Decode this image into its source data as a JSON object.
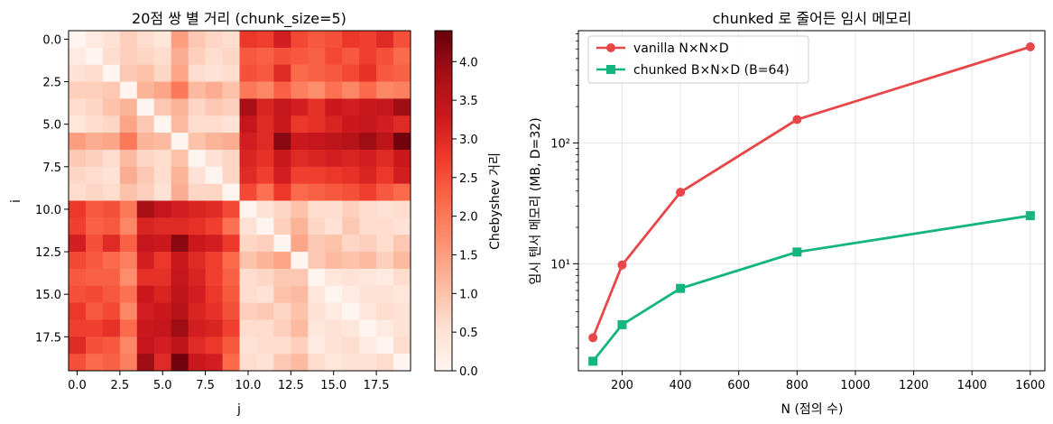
{
  "chart_data": [
    {
      "type": "heatmap",
      "title": "20점 쌍 별 거리 (chunk_size=5)",
      "xlabel": "j",
      "ylabel": "i",
      "rows": 20,
      "cols": 20,
      "x_ticks": [
        "0.0",
        "2.5",
        "5.0",
        "7.5",
        "10.0",
        "12.5",
        "15.0",
        "17.5"
      ],
      "y_ticks": [
        "0.0",
        "2.5",
        "5.0",
        "7.5",
        "10.0",
        "12.5",
        "15.0",
        "17.5"
      ],
      "colorbar": {
        "label": "Chebyshev 거리",
        "range": [
          0,
          4.4
        ],
        "ticks": [
          "0.0",
          "0.5",
          "1.0",
          "1.5",
          "2.0",
          "2.5",
          "3.0",
          "3.5",
          "4.0"
        ],
        "colormap": "Reds"
      },
      "values": [
        [
          0.0,
          0.3,
          0.5,
          0.8,
          0.6,
          0.4,
          1.5,
          0.9,
          0.7,
          0.6,
          2.8,
          2.7,
          3.2,
          2.6,
          2.4,
          2.5,
          2.8,
          2.7,
          3.0,
          2.5
        ],
        [
          0.3,
          0.0,
          0.6,
          0.8,
          0.7,
          0.6,
          1.3,
          0.8,
          0.6,
          0.7,
          2.4,
          2.3,
          2.5,
          2.4,
          2.3,
          2.6,
          2.4,
          2.7,
          2.5,
          2.2
        ],
        [
          0.5,
          0.6,
          0.0,
          0.9,
          1.0,
          0.7,
          1.4,
          0.6,
          0.5,
          0.6,
          2.5,
          2.4,
          3.0,
          2.2,
          2.3,
          2.4,
          2.6,
          2.9,
          2.4,
          2.3
        ],
        [
          0.8,
          0.8,
          0.9,
          0.0,
          1.2,
          1.4,
          2.0,
          1.1,
          1.3,
          1.0,
          2.0,
          1.8,
          2.3,
          1.9,
          1.7,
          2.1,
          1.8,
          2.2,
          1.8,
          1.9
        ],
        [
          0.6,
          0.7,
          1.0,
          1.2,
          0.0,
          0.9,
          1.2,
          0.7,
          0.9,
          0.8,
          3.8,
          3.1,
          3.4,
          3.2,
          2.9,
          3.3,
          3.2,
          3.3,
          3.4,
          3.9
        ],
        [
          0.4,
          0.6,
          0.7,
          1.4,
          0.9,
          0.0,
          1.1,
          0.6,
          0.6,
          0.5,
          3.4,
          3.0,
          3.3,
          2.8,
          2.9,
          3.1,
          3.3,
          3.4,
          3.2,
          3.0
        ],
        [
          1.5,
          1.3,
          1.4,
          2.0,
          1.2,
          1.1,
          0.0,
          1.0,
          1.2,
          1.3,
          3.2,
          3.0,
          4.1,
          3.3,
          3.4,
          3.5,
          3.6,
          3.9,
          3.5,
          4.3
        ],
        [
          0.9,
          0.8,
          0.6,
          1.1,
          0.7,
          0.6,
          1.0,
          0.0,
          0.5,
          0.7,
          3.1,
          2.9,
          3.3,
          3.0,
          3.1,
          3.2,
          3.1,
          3.2,
          3.0,
          3.3
        ],
        [
          0.7,
          0.6,
          0.5,
          1.3,
          0.9,
          0.6,
          1.2,
          0.5,
          0.0,
          0.7,
          3.0,
          2.7,
          3.2,
          2.7,
          2.7,
          2.8,
          2.9,
          3.1,
          2.8,
          3.2
        ],
        [
          0.6,
          0.7,
          0.6,
          1.0,
          0.8,
          0.5,
          1.3,
          0.7,
          0.7,
          0.0,
          2.6,
          2.1,
          2.8,
          2.2,
          2.3,
          2.4,
          2.5,
          2.7,
          2.4,
          2.2
        ],
        [
          2.8,
          2.4,
          2.5,
          2.0,
          3.8,
          3.4,
          3.2,
          3.1,
          3.0,
          2.6,
          0.0,
          0.5,
          0.7,
          1.0,
          0.6,
          0.6,
          0.8,
          0.6,
          0.5,
          0.6
        ],
        [
          2.7,
          2.3,
          2.4,
          1.8,
          3.1,
          3.0,
          3.0,
          2.9,
          2.7,
          2.1,
          0.5,
          0.0,
          0.8,
          1.2,
          0.7,
          0.5,
          0.9,
          0.6,
          0.6,
          0.5
        ],
        [
          3.2,
          2.5,
          3.0,
          2.3,
          3.4,
          3.3,
          4.1,
          3.3,
          3.2,
          2.8,
          0.7,
          0.8,
          0.0,
          1.4,
          0.9,
          1.0,
          0.7,
          0.8,
          0.6,
          0.9
        ],
        [
          2.6,
          2.4,
          2.2,
          1.9,
          3.2,
          2.8,
          3.3,
          3.0,
          2.7,
          2.2,
          1.0,
          1.2,
          1.4,
          0.0,
          0.9,
          1.1,
          1.0,
          1.1,
          0.8,
          1.1
        ],
        [
          2.4,
          2.3,
          2.3,
          1.7,
          2.9,
          2.9,
          3.4,
          3.1,
          2.7,
          2.3,
          0.6,
          0.7,
          0.9,
          0.9,
          0.0,
          0.4,
          0.5,
          0.4,
          0.3,
          0.6
        ],
        [
          2.5,
          2.6,
          2.4,
          2.1,
          3.3,
          3.1,
          3.5,
          3.2,
          2.8,
          2.4,
          0.6,
          0.5,
          1.0,
          1.1,
          0.4,
          0.0,
          0.3,
          0.5,
          0.5,
          0.4
        ],
        [
          2.8,
          2.4,
          2.6,
          1.8,
          3.2,
          3.3,
          3.6,
          3.1,
          2.9,
          2.5,
          0.8,
          0.9,
          0.7,
          1.0,
          0.5,
          0.3,
          0.0,
          0.4,
          0.6,
          0.5
        ],
        [
          2.7,
          2.7,
          2.9,
          2.2,
          3.3,
          3.4,
          3.9,
          3.2,
          3.1,
          2.7,
          0.6,
          0.6,
          0.8,
          1.1,
          0.4,
          0.5,
          0.4,
          0.0,
          0.3,
          0.5
        ],
        [
          3.0,
          2.5,
          2.4,
          1.8,
          3.4,
          3.2,
          3.5,
          3.0,
          2.8,
          2.4,
          0.5,
          0.6,
          0.6,
          0.8,
          0.3,
          0.5,
          0.6,
          0.3,
          0.0,
          0.6
        ],
        [
          2.5,
          2.2,
          2.3,
          1.9,
          3.9,
          3.0,
          4.3,
          3.3,
          3.2,
          2.2,
          0.6,
          0.5,
          0.9,
          1.1,
          0.6,
          0.4,
          0.5,
          0.5,
          0.6,
          0.0
        ]
      ]
    },
    {
      "type": "line",
      "title": "chunked 로 줄어든 임시 메모리",
      "xlabel": "N (점의 수)",
      "ylabel": "임시 텐서 메모리 (MB, D=32)",
      "y_scale": "log",
      "xlim": [
        50,
        1650
      ],
      "ylim": [
        1.3,
        850
      ],
      "x_ticks": [
        "200",
        "400",
        "600",
        "800",
        "1000",
        "1200",
        "1400",
        "1600"
      ],
      "y_ticks": [
        "10¹",
        "10²"
      ],
      "grid": true,
      "legend_position": "top-left",
      "x": [
        100,
        200,
        400,
        800,
        1600
      ],
      "series": [
        {
          "name": "vanilla N×N×D",
          "values": [
            2.44,
            9.77,
            39.06,
            156.25,
            625.0
          ],
          "color": "#e8474a",
          "marker": "circle"
        },
        {
          "name": "chunked B×N×D (B=64)",
          "values": [
            1.56,
            3.13,
            6.25,
            12.5,
            25.0
          ],
          "color": "#15b57f",
          "marker": "square"
        }
      ]
    }
  ]
}
